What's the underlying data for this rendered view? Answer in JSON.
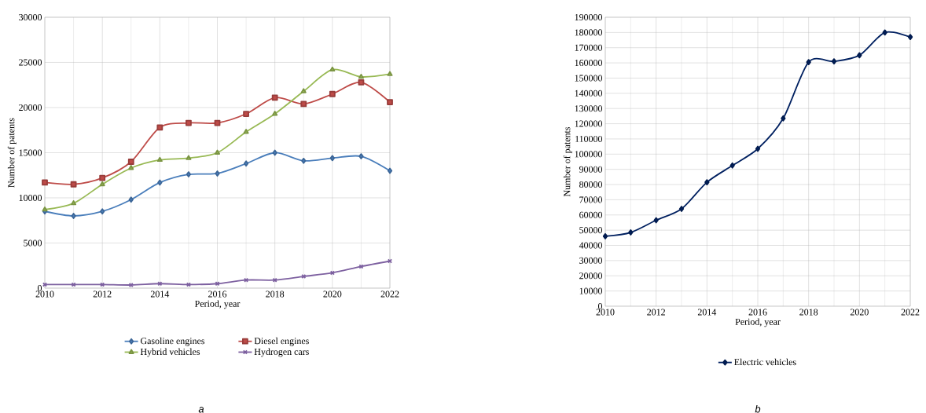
{
  "chart_data": [
    {
      "type": "line",
      "xlabel": "Period, year",
      "ylabel": "Number of patents",
      "x": [
        2010,
        2011,
        2012,
        2013,
        2014,
        2015,
        2016,
        2017,
        2018,
        2019,
        2020,
        2021,
        2022
      ],
      "series": [
        {
          "name": "Gasoline engines",
          "color": "#4a7ebb",
          "marker": "diamond",
          "values": [
            8500,
            8000,
            8500,
            9800,
            11700,
            12600,
            12700,
            13800,
            15000,
            14100,
            14400,
            14600,
            13000
          ]
        },
        {
          "name": "Diesel engines",
          "color": "#be4b48",
          "marker": "square",
          "values": [
            11700,
            11500,
            12200,
            14000,
            17800,
            18300,
            18300,
            19300,
            21100,
            20400,
            21500,
            22800,
            20600
          ]
        },
        {
          "name": "Hybrid vehicles",
          "color": "#98b954",
          "marker": "triangle",
          "values": [
            8700,
            9400,
            11500,
            13300,
            14200,
            14400,
            15000,
            17300,
            19300,
            21800,
            24200,
            23400,
            23700
          ]
        },
        {
          "name": "Hydrogen cars",
          "color": "#7d60a0",
          "marker": "cross",
          "values": [
            400,
            400,
            400,
            350,
            500,
            400,
            500,
            900,
            900,
            1300,
            1700,
            2400,
            3000
          ]
        }
      ],
      "xlim": [
        2010,
        2022
      ],
      "xticks": [
        2010,
        2012,
        2014,
        2016,
        2018,
        2020,
        2022
      ],
      "ylim": [
        0,
        30000
      ],
      "yticks": [
        0,
        5000,
        10000,
        15000,
        20000,
        25000,
        30000
      ],
      "grid": true,
      "legend": "bottom",
      "annotations": [
        "a"
      ]
    },
    {
      "type": "line",
      "xlabel": "Period, year",
      "ylabel": "Number of patents",
      "x": [
        2010,
        2011,
        2012,
        2013,
        2014,
        2015,
        2016,
        2017,
        2018,
        2019,
        2020,
        2021,
        2022
      ],
      "series": [
        {
          "name": "Electric vehicles",
          "color": "#002060",
          "marker": "diamond",
          "values": [
            46000,
            48500,
            56500,
            64000,
            81500,
            92500,
            103500,
            123500,
            160500,
            161000,
            165000,
            180000,
            177000
          ]
        }
      ],
      "xlim": [
        2010,
        2022
      ],
      "xticks": [
        2010,
        2012,
        2014,
        2016,
        2018,
        2020,
        2022
      ],
      "ylim": [
        0,
        190000
      ],
      "yticks": [
        0,
        10000,
        20000,
        30000,
        40000,
        50000,
        60000,
        70000,
        80000,
        90000,
        100000,
        110000,
        120000,
        130000,
        140000,
        150000,
        160000,
        170000,
        180000,
        190000
      ],
      "grid": true,
      "legend": "bottom",
      "annotations": [
        "b"
      ]
    }
  ]
}
